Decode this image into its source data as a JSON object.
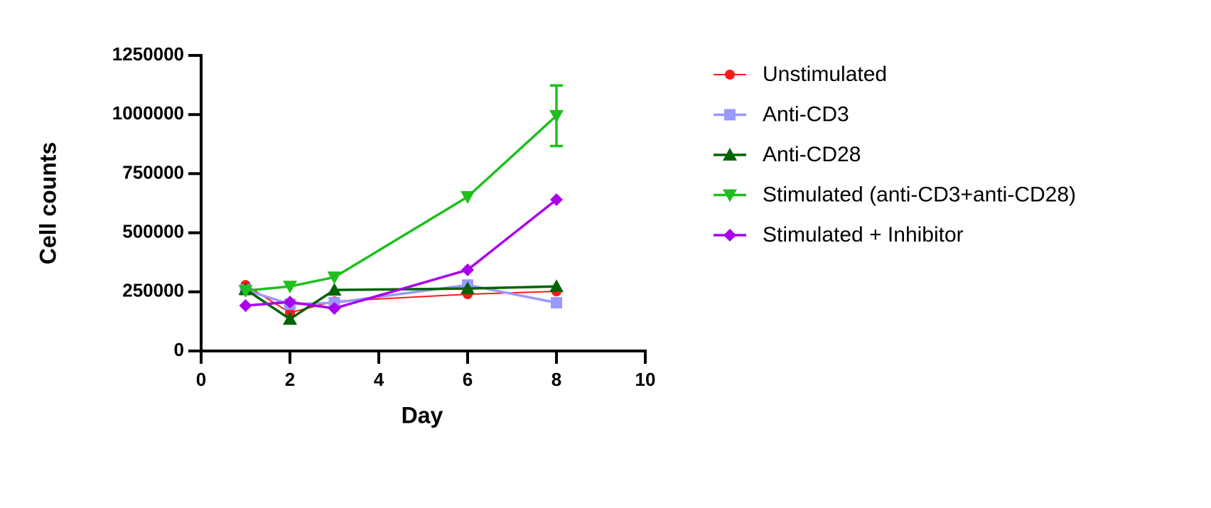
{
  "chart_data": {
    "type": "line",
    "x_label": "Day",
    "y_label": "Cell counts",
    "x": [
      1,
      2,
      3,
      6,
      8
    ],
    "xlim": [
      0,
      10
    ],
    "xticks": [
      0,
      2,
      4,
      6,
      8,
      10
    ],
    "ylim": [
      0,
      1250000
    ],
    "yticks": [
      0,
      250000,
      500000,
      750000,
      1000000,
      1250000
    ],
    "series": [
      {
        "name": "Unstimulated",
        "color": "#ff1a1a",
        "marker": "circle",
        "values": [
          279000,
          162000,
          210000,
          240000,
          252000
        ]
      },
      {
        "name": "Anti-CD3",
        "color": "#9999ff",
        "marker": "square",
        "values": [
          258000,
          198000,
          204000,
          279000,
          204000
        ]
      },
      {
        "name": "Anti-CD28",
        "color": "#006400",
        "marker": "triangle-up",
        "values": [
          261000,
          135000,
          258000,
          264000,
          273000
        ]
      },
      {
        "name": "Stimulated (anti-CD3+anti-CD28)",
        "color": "#1fbf1f",
        "marker": "triangle-down",
        "values": [
          255000,
          273000,
          312000,
          652000,
          995000
        ],
        "errors": [
          null,
          null,
          null,
          null,
          128000
        ]
      },
      {
        "name": "Stimulated + Inhibitor",
        "color": "#aa00ee",
        "marker": "diamond",
        "values": [
          192000,
          207000,
          180000,
          343000,
          640000
        ]
      }
    ]
  }
}
